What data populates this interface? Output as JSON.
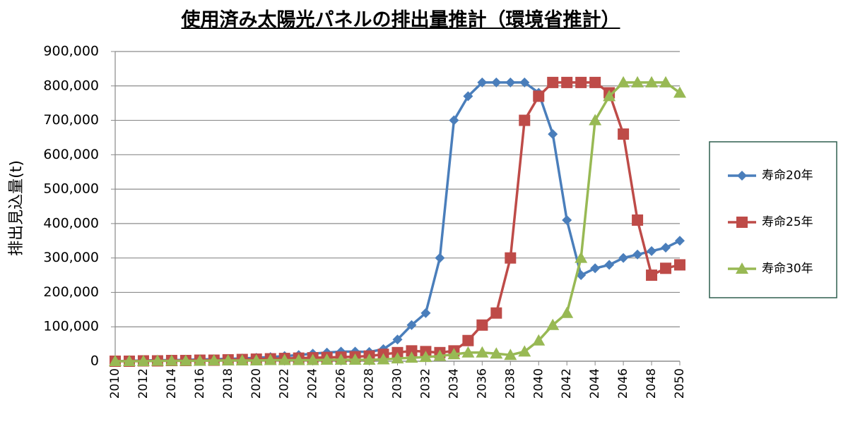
{
  "chart_data": {
    "type": "line",
    "title": "使用済み太陽光パネルの排出量推計（環境省推計）",
    "y_label": "排出見込量(t)",
    "x": [
      2010,
      2011,
      2012,
      2013,
      2014,
      2015,
      2016,
      2017,
      2018,
      2019,
      2020,
      2021,
      2022,
      2023,
      2024,
      2025,
      2026,
      2027,
      2028,
      2029,
      2030,
      2031,
      2032,
      2033,
      2034,
      2035,
      2036,
      2037,
      2038,
      2039,
      2040,
      2041,
      2042,
      2043,
      2044,
      2045,
      2046,
      2047,
      2048,
      2049,
      2050
    ],
    "xlim": [
      2010,
      2050
    ],
    "xticks": [
      2010,
      2012,
      2014,
      2016,
      2018,
      2020,
      2022,
      2024,
      2026,
      2028,
      2030,
      2032,
      2034,
      2036,
      2038,
      2040,
      2042,
      2044,
      2046,
      2048,
      2050
    ],
    "ylim": [
      0,
      900000
    ],
    "yticks": [
      0,
      {
        "value": 100000,
        "label": "100,000"
      },
      {
        "value": 200000,
        "label": "200,000"
      },
      {
        "value": 300000,
        "label": "300,000"
      },
      {
        "value": 400000,
        "label": "400,000"
      },
      {
        "value": 500000,
        "label": "500,000"
      },
      {
        "value": 600000,
        "label": "600,000"
      },
      {
        "value": 700000,
        "label": "700,000"
      },
      {
        "value": 800000,
        "label": "800,000"
      },
      {
        "value": 900000,
        "label": "900,000"
      }
    ],
    "grid": true,
    "legend": "right",
    "series": [
      {
        "name": "寿命20年",
        "color": "#4a7ebb",
        "marker": "diamond",
        "values": [
          0,
          1000,
          2000,
          3000,
          3000,
          4000,
          5000,
          6000,
          7000,
          8000,
          10000,
          12000,
          15000,
          18000,
          22000,
          25000,
          28000,
          28000,
          27000,
          35000,
          63000,
          105000,
          140000,
          300000,
          700000,
          770000,
          810000,
          810000,
          810000,
          810000,
          780000,
          660000,
          410000,
          250000,
          270000,
          280000,
          300000,
          310000,
          320000,
          330000,
          350000
        ]
      },
      {
        "name": "寿命25年",
        "color": "#be4b48",
        "marker": "square",
        "values": [
          0,
          0,
          1000,
          1000,
          2000,
          2000,
          3000,
          3000,
          4000,
          5000,
          6000,
          7000,
          8000,
          9000,
          10000,
          11000,
          12000,
          13000,
          15000,
          20000,
          25000,
          30000,
          28000,
          25000,
          30000,
          60000,
          105000,
          140000,
          300000,
          700000,
          770000,
          810000,
          810000,
          810000,
          810000,
          780000,
          660000,
          410000,
          250000,
          270000,
          280000
        ]
      },
      {
        "name": "寿命30年",
        "color": "#98b954",
        "marker": "triangle",
        "values": [
          0,
          0,
          0,
          1000,
          1000,
          1000,
          1000,
          2000,
          2000,
          2000,
          2000,
          3000,
          3000,
          3000,
          3000,
          4000,
          4000,
          4000,
          4000,
          5000,
          8000,
          10000,
          12000,
          15000,
          20000,
          25000,
          25000,
          22000,
          18000,
          28000,
          60000,
          105000,
          140000,
          300000,
          700000,
          770000,
          810000,
          810000,
          810000,
          810000,
          780000
        ]
      }
    ]
  }
}
